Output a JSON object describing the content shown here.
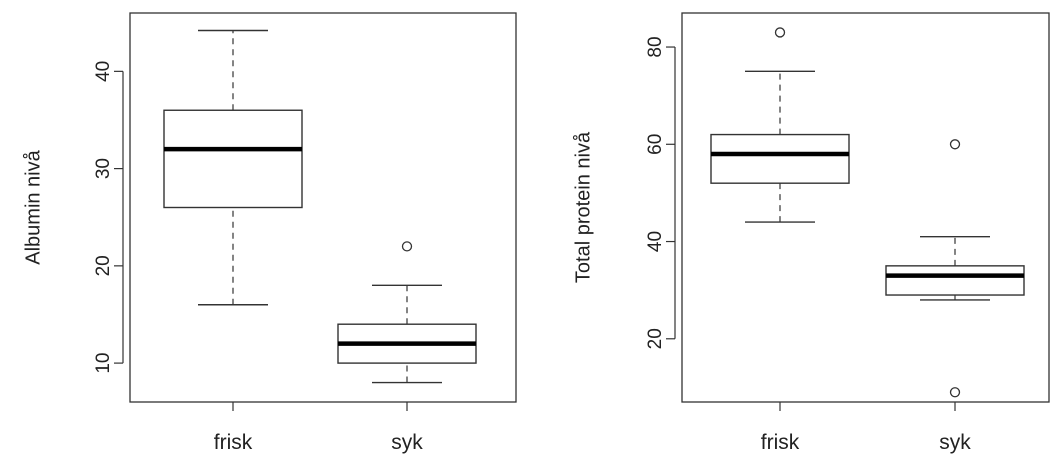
{
  "chart_data": [
    {
      "type": "box",
      "ylabel": "Albumin nivå",
      "categories": [
        "frisk",
        "syk"
      ],
      "ylim": [
        6,
        46
      ],
      "yticks": [
        10,
        20,
        30,
        40
      ],
      "boxes": [
        {
          "category": "frisk",
          "whisker_low": 16,
          "q1": 26,
          "median": 32,
          "q3": 36,
          "whisker_high": 44.2,
          "outliers": []
        },
        {
          "category": "syk",
          "whisker_low": 8,
          "q1": 10,
          "median": 12,
          "q3": 14,
          "whisker_high": 18,
          "outliers": [
            22
          ]
        }
      ]
    },
    {
      "type": "box",
      "ylabel": "Total protein nivå",
      "categories": [
        "frisk",
        "syk"
      ],
      "ylim": [
        7,
        87
      ],
      "yticks": [
        20,
        40,
        60,
        80
      ],
      "boxes": [
        {
          "category": "frisk",
          "whisker_low": 44,
          "q1": 52,
          "median": 58,
          "q3": 62,
          "whisker_high": 75,
          "outliers": [
            83
          ]
        },
        {
          "category": "syk",
          "whisker_low": 28,
          "q1": 29,
          "median": 33,
          "q3": 35,
          "whisker_high": 41,
          "outliers": [
            60,
            9
          ]
        }
      ]
    }
  ]
}
